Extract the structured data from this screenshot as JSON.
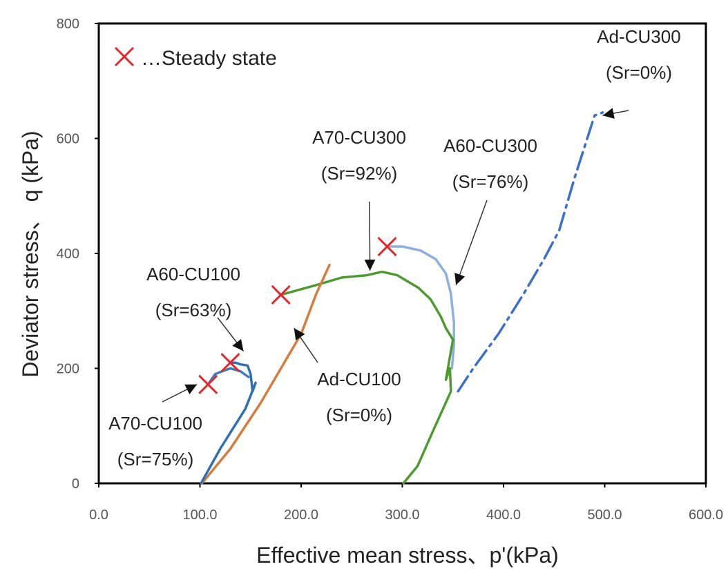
{
  "chart_data": {
    "type": "line",
    "xlabel": "Effective mean stress、p'(kPa)",
    "ylabel": "Deviator stress、 q (kPa)",
    "xlim": [
      0,
      600
    ],
    "ylim": [
      0,
      800
    ],
    "x_ticks": [
      0,
      100,
      200,
      300,
      400,
      500,
      600
    ],
    "x_tick_labels": [
      "0.0",
      "100.0",
      "200.0",
      "300.0",
      "400.0",
      "500.0",
      "600.0"
    ],
    "y_ticks": [
      0,
      200,
      400,
      600,
      800
    ],
    "y_tick_labels": [
      "0",
      "200",
      "400",
      "600",
      "800"
    ],
    "grid": false,
    "legend": {
      "label": "…Steady state",
      "marker": "x",
      "color": "#e8262a",
      "placement": "top-left"
    },
    "series": [
      {
        "name": "Ad-CU300",
        "color": "#3a6fd0",
        "dashed": true,
        "points": [
          [
            355,
            160
          ],
          [
            370,
            200
          ],
          [
            395,
            260
          ],
          [
            420,
            330
          ],
          [
            440,
            390
          ],
          [
            455,
            440
          ],
          [
            470,
            530
          ],
          [
            490,
            640
          ],
          [
            498,
            645
          ]
        ]
      },
      {
        "name": "A60-CU300",
        "color": "#8eaee0",
        "dashed": false,
        "points": [
          [
            285,
            412
          ],
          [
            300,
            412
          ],
          [
            318,
            405
          ],
          [
            333,
            390
          ],
          [
            343,
            365
          ],
          [
            348,
            330
          ],
          [
            351,
            280
          ],
          [
            351,
            240
          ],
          [
            349,
            200
          ]
        ]
      },
      {
        "name": "A70-CU300",
        "color": "#4f9a30",
        "dashed": false,
        "points": [
          [
            301,
            0
          ],
          [
            315,
            30
          ],
          [
            330,
            90
          ],
          [
            348,
            160
          ],
          [
            347,
            200
          ],
          [
            343,
            180
          ],
          [
            350,
            250
          ],
          [
            343,
            270
          ],
          [
            338,
            290
          ],
          [
            328,
            320
          ],
          [
            316,
            340
          ],
          [
            295,
            362
          ],
          [
            280,
            368
          ],
          [
            265,
            362
          ],
          [
            240,
            358
          ],
          [
            215,
            345
          ],
          [
            180,
            328
          ]
        ]
      },
      {
        "name": "Ad-CU100",
        "color": "#d77b3e",
        "dashed": false,
        "points": [
          [
            102,
            0
          ],
          [
            130,
            60
          ],
          [
            160,
            140
          ],
          [
            180,
            200
          ],
          [
            200,
            260
          ],
          [
            215,
            330
          ],
          [
            228,
            380
          ]
        ]
      },
      {
        "name": "A60-CU100",
        "color": "#2f6fb3",
        "dashed": false,
        "points": [
          [
            101,
            0
          ],
          [
            120,
            60
          ],
          [
            145,
            130
          ],
          [
            155,
            175
          ],
          [
            152,
            160
          ],
          [
            150,
            190
          ],
          [
            147,
            205
          ],
          [
            140,
            207
          ],
          [
            135,
            210
          ],
          [
            130,
            210
          ]
        ]
      },
      {
        "name": "A70-CU100",
        "color": "#3b7cc4",
        "dashed": false,
        "points": [
          [
            108,
            172
          ],
          [
            115,
            190
          ],
          [
            122,
            195
          ],
          [
            130,
            200
          ],
          [
            140,
            195
          ],
          [
            148,
            185
          ]
        ]
      }
    ],
    "steady_state_points": [
      [
        108,
        172
      ],
      [
        130,
        210
      ],
      [
        180,
        328
      ],
      [
        285,
        412
      ]
    ],
    "annotations": [
      {
        "series": "Ad-CU300",
        "line1": "Ad-CU300",
        "line2": "(Sr=0%)"
      },
      {
        "series": "A60-CU300",
        "line1": "A60-CU300",
        "line2": "(Sr=76%)"
      },
      {
        "series": "A70-CU300",
        "line1": "A70-CU300",
        "line2": "(Sr=92%)"
      },
      {
        "series": "A60-CU100",
        "line1": "A60-CU100",
        "line2": "(Sr=63%)"
      },
      {
        "series": "Ad-CU100",
        "line1": "Ad-CU100",
        "line2": "(Sr=0%)"
      },
      {
        "series": "A70-CU100",
        "line1": "A70-CU100",
        "line2": "(Sr=75%)"
      }
    ]
  }
}
